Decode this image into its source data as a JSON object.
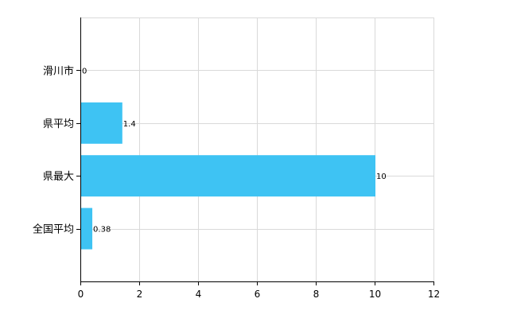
{
  "chart_data": {
    "type": "bar",
    "orientation": "horizontal",
    "categories": [
      "滑川市",
      "県平均",
      "県最大",
      "全国平均"
    ],
    "values": [
      0,
      1.4,
      10,
      0.38
    ],
    "data_labels": [
      "0",
      "1.4",
      "10",
      "0.38"
    ],
    "x_ticks": [
      "0",
      "2",
      "4",
      "6",
      "8",
      "10",
      "12"
    ],
    "xlim": [
      0,
      12
    ],
    "grid": true,
    "legend": "none",
    "colors": {
      "bar": "#3ec3f3",
      "grid": "#d9d9d9",
      "axis": "#000000",
      "text": "#000000"
    }
  }
}
